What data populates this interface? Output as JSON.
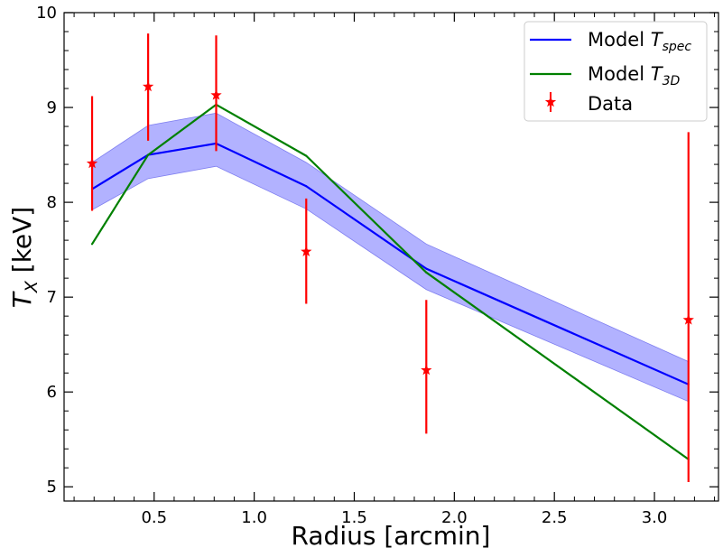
{
  "chart_data": {
    "type": "line",
    "xlabel": "Radius [arcmin]",
    "ylabel": {
      "base": "T",
      "sub": "X",
      "unit": " [keV]"
    },
    "xlim": [
      0.05,
      3.32
    ],
    "ylim": [
      4.85,
      10.0
    ],
    "xticks": [
      0.5,
      1.0,
      1.5,
      2.0,
      2.5,
      3.0
    ],
    "xtick_labels": [
      "0.5",
      "1.0",
      "1.5",
      "2.0",
      "2.5",
      "3.0"
    ],
    "yticks": [
      5,
      6,
      7,
      8,
      9,
      10
    ],
    "ytick_labels": [
      "5",
      "6",
      "7",
      "8",
      "9",
      "10"
    ],
    "x_minor_step": 0.1,
    "y_minor_step": 0.2,
    "grid": false,
    "legend_position": "top-right",
    "series": [
      {
        "name_base": "Model ",
        "name_math": "T",
        "name_sub": "spec",
        "kind": "line_band",
        "color": "#0000ff",
        "band_color": "#b2b2ff",
        "x": [
          0.19,
          0.47,
          0.81,
          1.26,
          1.86,
          3.17
        ],
        "y": [
          8.14,
          8.5,
          8.62,
          8.17,
          7.3,
          6.08
        ],
        "band_low": [
          7.92,
          8.25,
          8.38,
          7.93,
          7.08,
          5.9
        ],
        "band_high": [
          8.42,
          8.81,
          8.94,
          8.42,
          7.56,
          6.32
        ]
      },
      {
        "name_base": "Model ",
        "name_math": "T",
        "name_sub": "3D",
        "kind": "line",
        "color": "#008000",
        "x": [
          0.19,
          0.47,
          0.81,
          1.26,
          1.86,
          3.17
        ],
        "y": [
          7.56,
          8.5,
          9.03,
          8.49,
          7.26,
          5.29
        ]
      },
      {
        "name_base": "Data",
        "kind": "errorbar",
        "color": "#ff0000",
        "marker": "star",
        "x": [
          0.19,
          0.47,
          0.81,
          1.26,
          1.86,
          3.17
        ],
        "y": [
          8.41,
          9.22,
          9.13,
          7.48,
          6.23,
          6.76
        ],
        "yerr_low": [
          7.91,
          8.65,
          8.54,
          6.93,
          5.56,
          5.05
        ],
        "yerr_high": [
          9.12,
          9.78,
          9.76,
          8.04,
          6.97,
          8.74
        ]
      }
    ]
  }
}
